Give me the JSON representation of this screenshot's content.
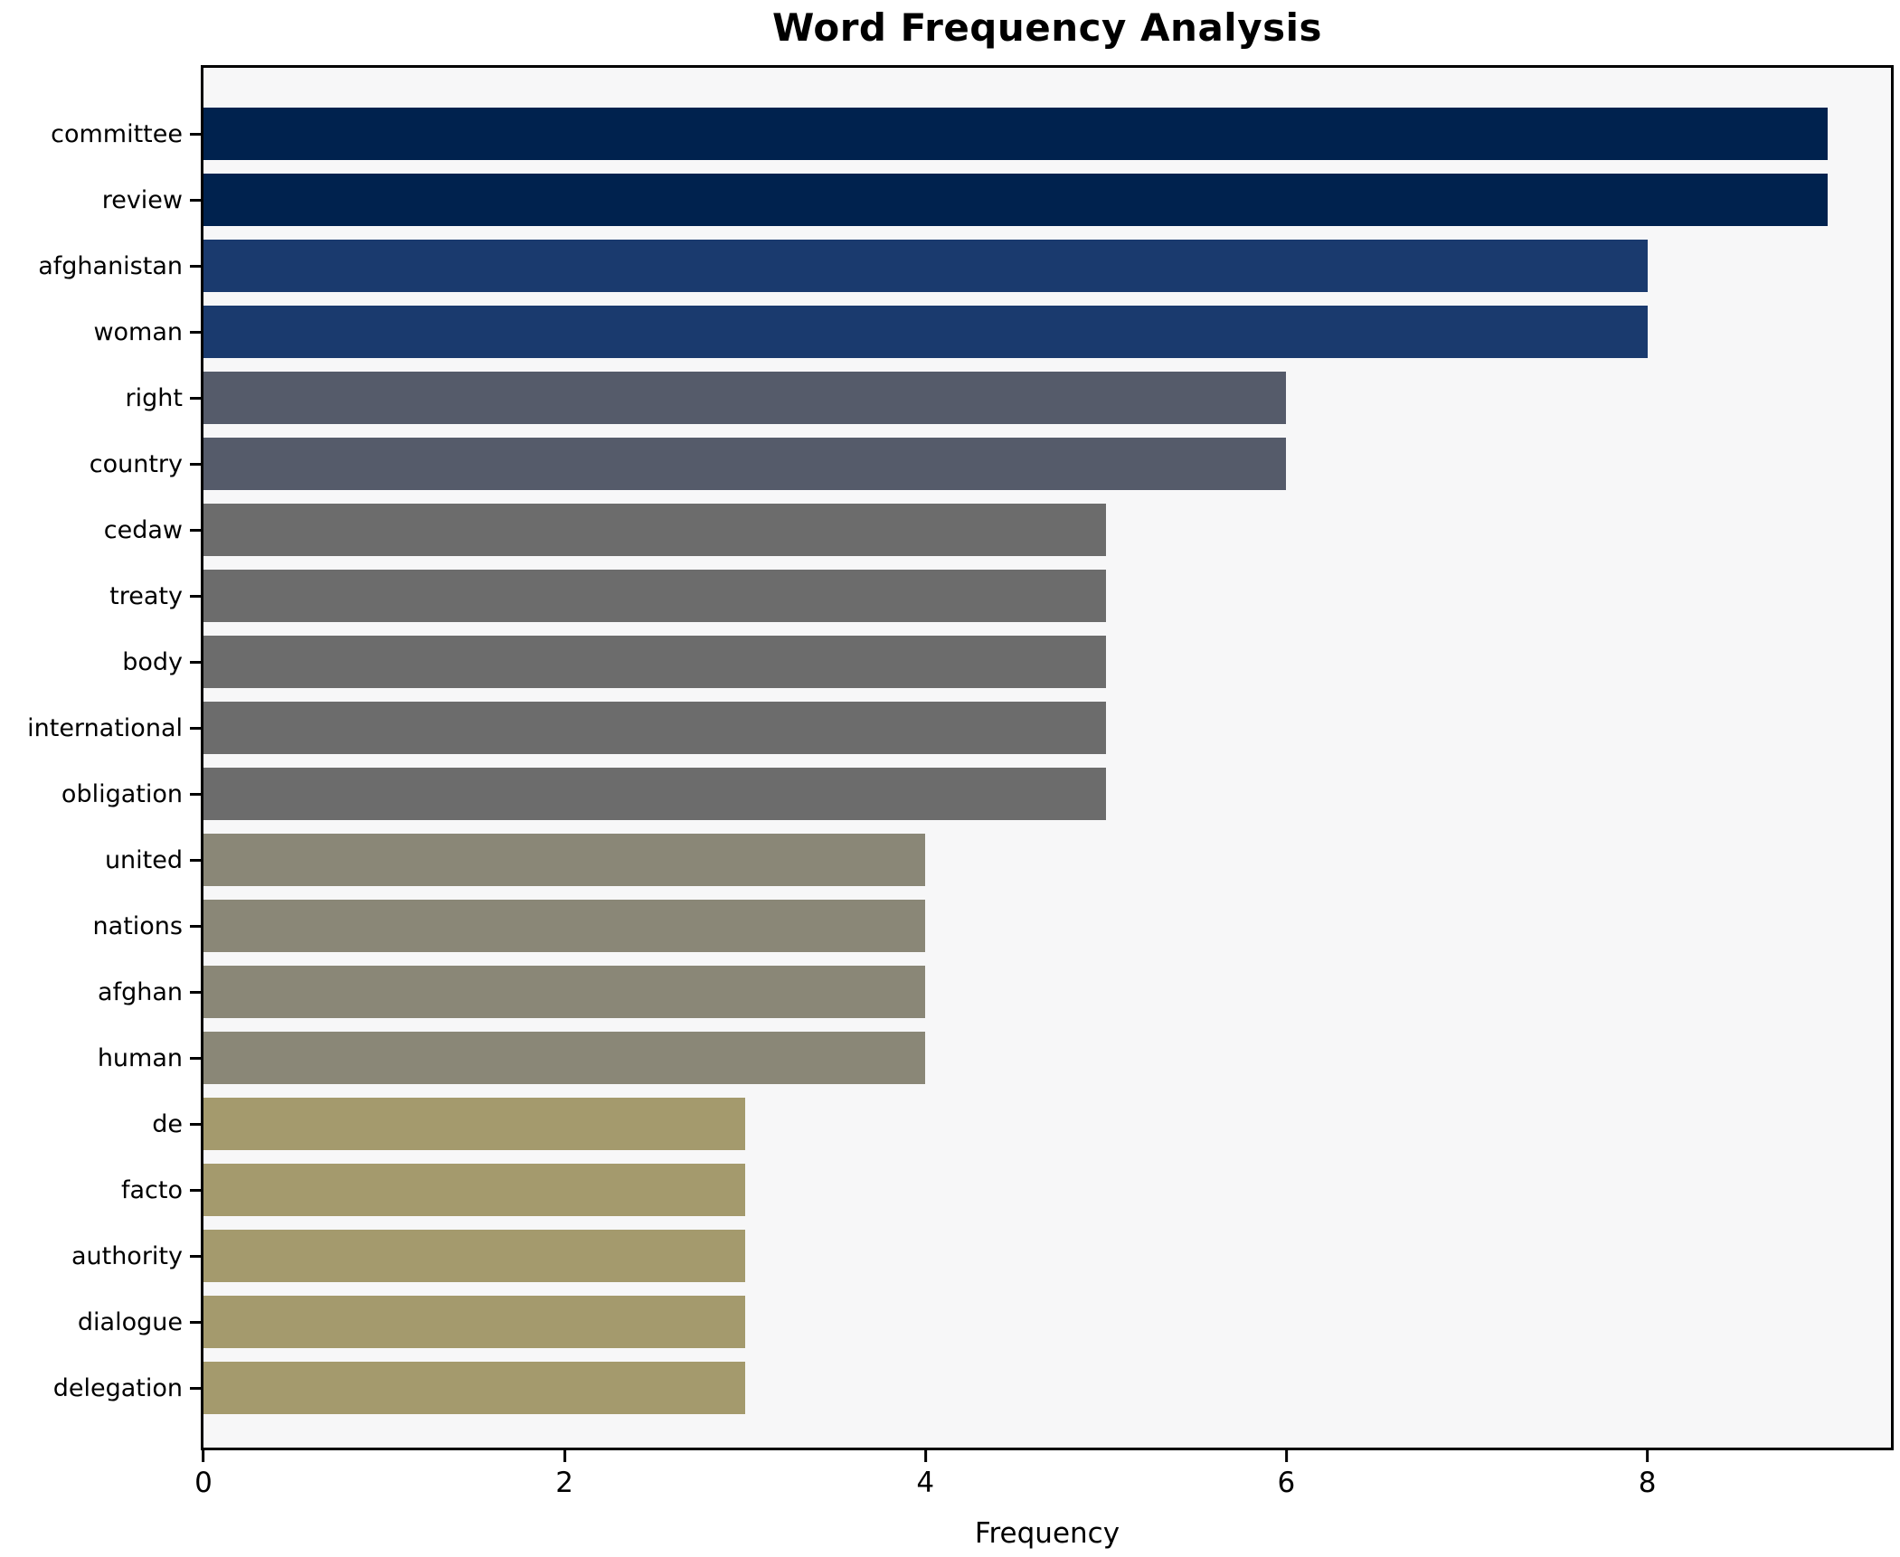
{
  "title": "Word Frequency Analysis",
  "xlabel": "Frequency",
  "colors": {
    "figure_background": "#ffffff",
    "plot_background": "#f7f7f8",
    "spine": "#000000",
    "text": "#000000"
  },
  "chart_data": {
    "type": "bar",
    "orientation": "horizontal",
    "title": "Word Frequency Analysis",
    "xlabel": "Frequency",
    "ylabel": "",
    "xlim": [
      0,
      9.35
    ],
    "x_ticks": [
      0,
      2,
      4,
      6,
      8
    ],
    "grid": false,
    "legend": false,
    "categories": [
      "committee",
      "review",
      "afghanistan",
      "woman",
      "right",
      "country",
      "cedaw",
      "treaty",
      "body",
      "international",
      "obligation",
      "united",
      "nations",
      "afghan",
      "human",
      "de",
      "facto",
      "authority",
      "dialogue",
      "delegation"
    ],
    "values": [
      9,
      9,
      8,
      8,
      6,
      6,
      5,
      5,
      5,
      5,
      5,
      4,
      4,
      4,
      4,
      3,
      3,
      3,
      3,
      3
    ],
    "bar_colors": [
      "#00224e",
      "#00224e",
      "#1a3a6e",
      "#1a3a6e",
      "#555b6a",
      "#555b6a",
      "#6c6c6c",
      "#6c6c6c",
      "#6c6c6c",
      "#6c6c6c",
      "#6c6c6c",
      "#8a8777",
      "#8a8777",
      "#8a8777",
      "#8a8777",
      "#a49a6d",
      "#a49a6d",
      "#a49a6d",
      "#a49a6d",
      "#a49a6d"
    ]
  }
}
